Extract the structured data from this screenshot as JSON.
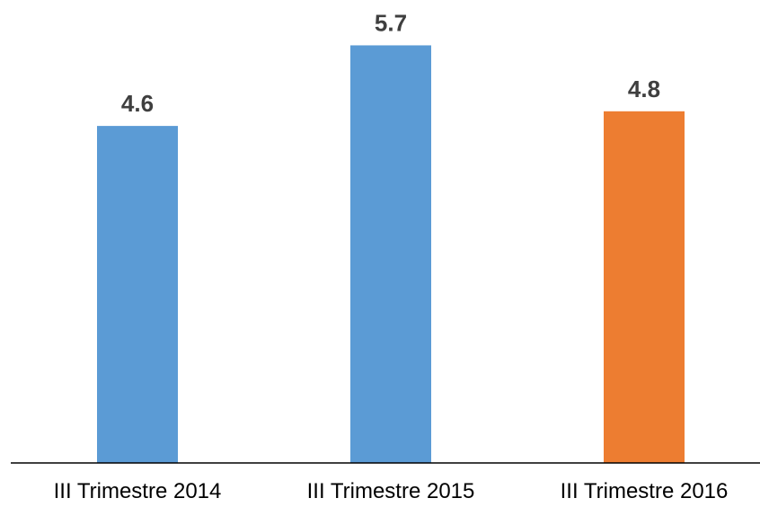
{
  "chart_data": {
    "type": "bar",
    "categories": [
      "III Trimestre 2014",
      "III Trimestre 2015",
      "III Trimestre 2016"
    ],
    "values": [
      4.6,
      5.7,
      4.8
    ],
    "value_labels": [
      "4.6",
      "5.7",
      "4.8"
    ],
    "colors": [
      "#5b9bd5",
      "#5b9bd5",
      "#ed7d31"
    ],
    "ylim": [
      0,
      6.0
    ],
    "grid": false,
    "legend": "none",
    "title": "",
    "xlabel": "",
    "ylabel": ""
  }
}
